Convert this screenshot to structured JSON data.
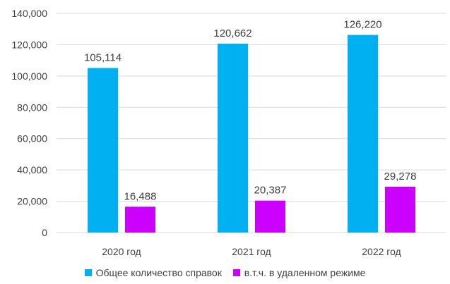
{
  "chart_data": {
    "type": "bar",
    "categories": [
      "2020 год",
      "2021 год",
      "2022 год"
    ],
    "series": [
      {
        "name": "Общее количество справок",
        "color": "#00b0f0",
        "values": [
          105114,
          120662,
          126220
        ],
        "labels": [
          "105,114",
          "120,662",
          "126,220"
        ]
      },
      {
        "name": "в.т.ч. в удаленном режиме",
        "color": "#cc00ff",
        "values": [
          16488,
          20387,
          29278
        ],
        "labels": [
          "16,488",
          "20,387",
          "29,278"
        ]
      }
    ],
    "ylim": [
      0,
      140000
    ],
    "yticks": [
      0,
      20000,
      40000,
      60000,
      80000,
      100000,
      120000,
      140000
    ],
    "ytick_labels": [
      "0",
      "20,000",
      "40,000",
      "60,000",
      "80,000",
      "100,000",
      "120,000",
      "140,000"
    ],
    "grid": true,
    "legend_position": "bottom"
  }
}
